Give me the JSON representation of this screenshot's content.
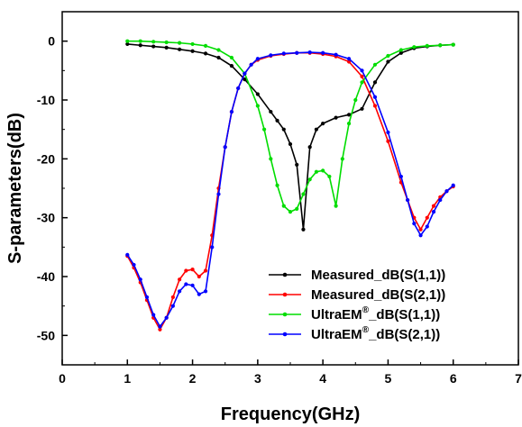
{
  "chart_data": {
    "type": "line",
    "xlabel": "Frequency(GHz)",
    "ylabel": "S-parameters(dB)",
    "xlim": [
      0,
      7
    ],
    "ylim": [
      -55,
      5
    ],
    "xticks": [
      "0",
      "1",
      "2",
      "3",
      "4",
      "5",
      "6",
      "7"
    ],
    "yticks": [
      "0",
      "-10",
      "-20",
      "-30",
      "-40",
      "-50"
    ],
    "grid": false,
    "legend_position": "bottom-right",
    "series": [
      {
        "name": "Measured_dB(S(1,1))",
        "name_main": "Measured_dB(S(1,1))",
        "name_sup": "",
        "name_tail": "",
        "color": "#000000",
        "points": [
          [
            1.0,
            -0.5
          ],
          [
            1.2,
            -0.7
          ],
          [
            1.4,
            -0.9
          ],
          [
            1.6,
            -1.1
          ],
          [
            1.8,
            -1.4
          ],
          [
            2.0,
            -1.7
          ],
          [
            2.2,
            -2.1
          ],
          [
            2.4,
            -2.8
          ],
          [
            2.6,
            -4.2
          ],
          [
            2.8,
            -6.5
          ],
          [
            3.0,
            -9.0
          ],
          [
            3.2,
            -12.0
          ],
          [
            3.3,
            -13.5
          ],
          [
            3.4,
            -15.0
          ],
          [
            3.5,
            -17.5
          ],
          [
            3.6,
            -21.0
          ],
          [
            3.7,
            -32.0
          ],
          [
            3.8,
            -18.0
          ],
          [
            3.9,
            -15.0
          ],
          [
            4.0,
            -14.0
          ],
          [
            4.2,
            -13.0
          ],
          [
            4.4,
            -12.5
          ],
          [
            4.6,
            -11.5
          ],
          [
            4.8,
            -7.0
          ],
          [
            5.0,
            -3.5
          ],
          [
            5.2,
            -2.0
          ],
          [
            5.4,
            -1.2
          ],
          [
            5.6,
            -0.9
          ],
          [
            5.8,
            -0.7
          ],
          [
            6.0,
            -0.6
          ]
        ]
      },
      {
        "name": "Measured_dB(S(2,1))",
        "name_main": "Measured_dB(S(2,1))",
        "name_sup": "",
        "name_tail": "",
        "color": "#ff0000",
        "points": [
          [
            1.0,
            -36.5
          ],
          [
            1.1,
            -38.5
          ],
          [
            1.2,
            -41.0
          ],
          [
            1.3,
            -44.0
          ],
          [
            1.4,
            -47.0
          ],
          [
            1.5,
            -49.0
          ],
          [
            1.6,
            -47.0
          ],
          [
            1.7,
            -43.5
          ],
          [
            1.8,
            -40.5
          ],
          [
            1.9,
            -39.0
          ],
          [
            2.0,
            -38.8
          ],
          [
            2.1,
            -40.0
          ],
          [
            2.2,
            -39.0
          ],
          [
            2.3,
            -33.0
          ],
          [
            2.4,
            -25.0
          ],
          [
            2.5,
            -18.0
          ],
          [
            2.6,
            -12.0
          ],
          [
            2.7,
            -8.0
          ],
          [
            2.8,
            -5.5
          ],
          [
            2.9,
            -4.0
          ],
          [
            3.0,
            -3.2
          ],
          [
            3.2,
            -2.5
          ],
          [
            3.4,
            -2.2
          ],
          [
            3.6,
            -2.0
          ],
          [
            3.8,
            -2.0
          ],
          [
            4.0,
            -2.2
          ],
          [
            4.2,
            -2.6
          ],
          [
            4.4,
            -3.5
          ],
          [
            4.6,
            -6.0
          ],
          [
            4.8,
            -11.0
          ],
          [
            5.0,
            -17.0
          ],
          [
            5.2,
            -24.0
          ],
          [
            5.3,
            -27.0
          ],
          [
            5.4,
            -30.0
          ],
          [
            5.5,
            -32.0
          ],
          [
            5.6,
            -30.0
          ],
          [
            5.7,
            -28.0
          ],
          [
            5.8,
            -26.5
          ],
          [
            5.9,
            -25.5
          ],
          [
            6.0,
            -24.7
          ]
        ]
      },
      {
        "name": "UltraEM®_dB(S(1,1))",
        "name_main": "UltraEM",
        "name_sup": "®",
        "name_tail": "_dB(S(1,1))",
        "color": "#00dd00",
        "points": [
          [
            1.0,
            0.0
          ],
          [
            1.2,
            0.0
          ],
          [
            1.4,
            -0.1
          ],
          [
            1.6,
            -0.2
          ],
          [
            1.8,
            -0.3
          ],
          [
            2.0,
            -0.5
          ],
          [
            2.2,
            -0.8
          ],
          [
            2.4,
            -1.5
          ],
          [
            2.6,
            -2.8
          ],
          [
            2.8,
            -5.5
          ],
          [
            3.0,
            -11.0
          ],
          [
            3.1,
            -15.0
          ],
          [
            3.2,
            -20.0
          ],
          [
            3.3,
            -24.5
          ],
          [
            3.4,
            -28.0
          ],
          [
            3.5,
            -29.0
          ],
          [
            3.6,
            -28.5
          ],
          [
            3.7,
            -26.0
          ],
          [
            3.8,
            -23.5
          ],
          [
            3.9,
            -22.2
          ],
          [
            4.0,
            -22.0
          ],
          [
            4.1,
            -23.0
          ],
          [
            4.2,
            -28.0
          ],
          [
            4.3,
            -20.0
          ],
          [
            4.4,
            -14.0
          ],
          [
            4.5,
            -10.0
          ],
          [
            4.6,
            -7.0
          ],
          [
            4.8,
            -4.0
          ],
          [
            5.0,
            -2.5
          ],
          [
            5.2,
            -1.5
          ],
          [
            5.4,
            -1.0
          ],
          [
            5.6,
            -0.8
          ],
          [
            5.8,
            -0.7
          ],
          [
            6.0,
            -0.6
          ]
        ]
      },
      {
        "name": "UltraEM®_dB(S(2,1))",
        "name_main": "UltraEM",
        "name_sup": "®",
        "name_tail": "_dB(S(2,1))",
        "color": "#0000ff",
        "points": [
          [
            1.0,
            -36.3
          ],
          [
            1.1,
            -38.0
          ],
          [
            1.2,
            -40.5
          ],
          [
            1.3,
            -43.5
          ],
          [
            1.4,
            -46.5
          ],
          [
            1.5,
            -48.5
          ],
          [
            1.6,
            -47.0
          ],
          [
            1.7,
            -45.0
          ],
          [
            1.8,
            -42.5
          ],
          [
            1.9,
            -41.3
          ],
          [
            2.0,
            -41.5
          ],
          [
            2.1,
            -43.0
          ],
          [
            2.2,
            -42.5
          ],
          [
            2.3,
            -35.0
          ],
          [
            2.4,
            -26.0
          ],
          [
            2.5,
            -18.0
          ],
          [
            2.6,
            -12.0
          ],
          [
            2.7,
            -8.0
          ],
          [
            2.8,
            -5.5
          ],
          [
            2.9,
            -4.0
          ],
          [
            3.0,
            -3.0
          ],
          [
            3.2,
            -2.4
          ],
          [
            3.4,
            -2.1
          ],
          [
            3.6,
            -2.0
          ],
          [
            3.8,
            -1.9
          ],
          [
            4.0,
            -2.0
          ],
          [
            4.2,
            -2.3
          ],
          [
            4.4,
            -3.0
          ],
          [
            4.6,
            -5.0
          ],
          [
            4.8,
            -9.5
          ],
          [
            5.0,
            -15.5
          ],
          [
            5.2,
            -23.0
          ],
          [
            5.3,
            -27.0
          ],
          [
            5.4,
            -31.0
          ],
          [
            5.5,
            -33.0
          ],
          [
            5.6,
            -31.5
          ],
          [
            5.7,
            -29.0
          ],
          [
            5.8,
            -27.0
          ],
          [
            5.9,
            -25.5
          ],
          [
            6.0,
            -24.5
          ]
        ]
      }
    ]
  }
}
